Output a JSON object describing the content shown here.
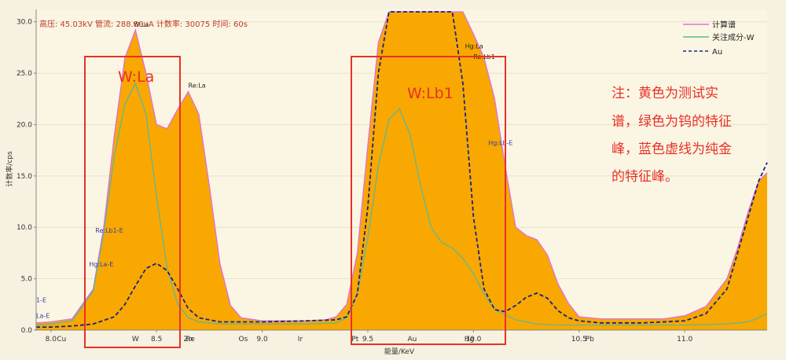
{
  "chart_data": {
    "type": "area",
    "header": "高压: 45.03kV  管流: 288.80uA  计数率: 30075  时间: 60s",
    "xlabel": "能量/KeV",
    "ylabel": "计数率/cps",
    "xlim": [
      7.93,
      11.39
    ],
    "ylim": [
      0,
      31.2
    ],
    "x_ticks": [
      {
        "v": 8.0,
        "label": "8.0"
      },
      {
        "v": 8.5,
        "label": "8.5"
      },
      {
        "v": 9.0,
        "label": "9.0"
      },
      {
        "v": 9.5,
        "label": "9.5"
      },
      {
        "v": 10.0,
        "label": "10.0"
      },
      {
        "v": 10.5,
        "label": "10.5"
      },
      {
        "v": 11.0,
        "label": "11.0"
      }
    ],
    "y_ticks": [
      0.0,
      5.0,
      10.0,
      15.0,
      20.0,
      25.0,
      30.0
    ],
    "element_markers": [
      {
        "v": 8.05,
        "label": "Cu"
      },
      {
        "v": 8.4,
        "label": "W"
      },
      {
        "v": 8.65,
        "label": "Zn"
      },
      {
        "v": 8.66,
        "label": "Re"
      },
      {
        "v": 8.91,
        "label": "Os"
      },
      {
        "v": 9.18,
        "label": "Ir"
      },
      {
        "v": 9.44,
        "label": "Pt"
      },
      {
        "v": 9.71,
        "label": "Au"
      },
      {
        "v": 9.98,
        "label": "Hg"
      },
      {
        "v": 10.55,
        "label": "Pb"
      }
    ],
    "peak_labels": [
      {
        "x": 8.39,
        "y": 29.5,
        "text": "W:La",
        "color": "#222222"
      },
      {
        "x": 8.65,
        "y": 23.6,
        "text": "Re:La",
        "color": "#222222"
      },
      {
        "x": 9.96,
        "y": 27.4,
        "text": "Hg:La",
        "color": "#222222"
      },
      {
        "x": 10.0,
        "y": 26.4,
        "text": "Re:Lb1",
        "color": "#222222"
      },
      {
        "x": 10.07,
        "y": 18.0,
        "text": "Hg:Lb-E",
        "color": "#3a3aa8"
      },
      {
        "x": 8.21,
        "y": 9.5,
        "text": "Re:Lb1-E",
        "color": "#3a3aa8"
      },
      {
        "x": 8.18,
        "y": 6.2,
        "text": "Hg:La-E",
        "color": "#3a3aa8"
      },
      {
        "x": 7.93,
        "y": 2.7,
        "text": "1-E",
        "color": "#3a3aa8"
      },
      {
        "x": 7.93,
        "y": 1.2,
        "text": "La-E",
        "color": "#3a3aa8"
      }
    ],
    "series": [
      {
        "name": "计算谱",
        "color": "#e06ee0",
        "style": "line",
        "x": [
          7.93,
          8.0,
          8.1,
          8.2,
          8.25,
          8.3,
          8.35,
          8.4,
          8.45,
          8.5,
          8.55,
          8.6,
          8.65,
          8.7,
          8.75,
          8.8,
          8.85,
          8.9,
          9.0,
          9.1,
          9.2,
          9.3,
          9.35,
          9.4,
          9.45,
          9.5,
          9.55,
          9.6,
          9.65,
          9.7,
          9.75,
          9.8,
          9.85,
          9.9,
          9.95,
          10.0,
          10.05,
          10.1,
          10.15,
          10.2,
          10.25,
          10.3,
          10.35,
          10.4,
          10.45,
          10.5,
          10.6,
          10.7,
          10.8,
          10.9,
          11.0,
          11.1,
          11.2,
          11.25,
          11.3,
          11.35,
          11.39
        ],
        "values": [
          0.7,
          0.8,
          1.1,
          4.0,
          10.0,
          19.0,
          26.5,
          29.2,
          25.0,
          20.0,
          19.6,
          21.5,
          23.2,
          21.0,
          14.0,
          6.5,
          2.4,
          1.2,
          0.9,
          0.9,
          0.9,
          1.0,
          1.3,
          2.5,
          7.5,
          18.0,
          28.0,
          32.0,
          32.0,
          32.0,
          32.0,
          32.0,
          32.0,
          32.0,
          31.5,
          28.8,
          26.5,
          22.5,
          16.0,
          10.0,
          9.2,
          8.8,
          7.3,
          4.5,
          2.6,
          1.3,
          1.1,
          1.1,
          1.1,
          1.1,
          1.4,
          2.3,
          5.0,
          8.0,
          11.5,
          14.5,
          15.3
        ]
      },
      {
        "name": "关注成分-W",
        "color": "#5bb89b",
        "style": "line",
        "x": [
          7.93,
          8.0,
          8.1,
          8.2,
          8.25,
          8.3,
          8.35,
          8.4,
          8.45,
          8.5,
          8.55,
          8.6,
          8.65,
          8.7,
          8.8,
          9.0,
          9.2,
          9.35,
          9.4,
          9.45,
          9.5,
          9.55,
          9.6,
          9.65,
          9.7,
          9.75,
          9.8,
          9.85,
          9.9,
          9.95,
          10.0,
          10.05,
          10.1,
          10.2,
          10.3,
          10.4,
          10.6,
          10.8,
          11.0,
          11.2,
          11.3,
          11.35,
          11.39
        ],
        "values": [
          0.5,
          0.6,
          0.9,
          3.8,
          9.5,
          17.0,
          22.0,
          24.0,
          21.0,
          13.0,
          6.0,
          2.5,
          1.2,
          0.8,
          0.6,
          0.6,
          0.6,
          0.7,
          1.2,
          3.5,
          9.0,
          16.0,
          20.5,
          21.5,
          19.0,
          14.0,
          10.0,
          8.5,
          8.0,
          7.0,
          5.5,
          3.5,
          2.0,
          1.0,
          0.6,
          0.5,
          0.5,
          0.5,
          0.5,
          0.6,
          0.8,
          1.2,
          1.6
        ]
      },
      {
        "name": "Au",
        "color": "#1a237e",
        "style": "dashed",
        "x": [
          7.93,
          8.0,
          8.1,
          8.2,
          8.3,
          8.35,
          8.4,
          8.45,
          8.5,
          8.55,
          8.6,
          8.65,
          8.7,
          8.8,
          9.0,
          9.2,
          9.35,
          9.4,
          9.45,
          9.5,
          9.55,
          9.6,
          9.65,
          9.7,
          9.75,
          9.8,
          9.85,
          9.9,
          9.95,
          10.0,
          10.05,
          10.1,
          10.15,
          10.2,
          10.25,
          10.3,
          10.35,
          10.4,
          10.45,
          10.5,
          10.6,
          10.8,
          11.0,
          11.1,
          11.2,
          11.25,
          11.3,
          11.35,
          11.39
        ],
        "values": [
          0.3,
          0.3,
          0.4,
          0.6,
          1.3,
          2.5,
          4.3,
          6.0,
          6.5,
          5.8,
          4.0,
          2.1,
          1.2,
          0.8,
          0.8,
          0.9,
          1.0,
          1.3,
          3.5,
          12.0,
          25.0,
          32.0,
          32.0,
          32.0,
          32.0,
          32.0,
          32.0,
          32.0,
          24.0,
          11.0,
          4.0,
          2.0,
          1.8,
          2.4,
          3.2,
          3.6,
          3.1,
          1.9,
          1.2,
          0.9,
          0.7,
          0.7,
          0.9,
          1.6,
          4.0,
          7.5,
          11.0,
          14.5,
          16.3
        ]
      }
    ],
    "fill_color": "#f8a800",
    "legend": "top-right",
    "annotations": {
      "box1_label": "W:La",
      "box2_label": "W:Lb1",
      "note_lines": [
        "注：黄色为测试实",
        "谱，绿色为钨的特征",
        "峰，蓝色虚线为纯金",
        "的特征峰。"
      ]
    },
    "colors": {
      "background": "#f6f1e0",
      "plot_bg": "#fbf6e3",
      "box": "#e8302a"
    }
  }
}
